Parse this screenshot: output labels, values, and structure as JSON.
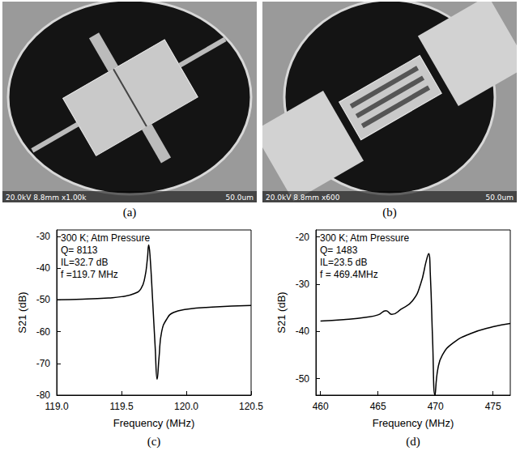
{
  "panels": [
    {
      "label": "(a)",
      "image": {
        "caption": "20.0kV 8.8mm x1.00k",
        "scale_bar": "50.0um"
      }
    },
    {
      "label": "(b)",
      "image": {
        "caption": "20.0kV 8.8mm x600",
        "scale_bar": "50.0um"
      }
    }
  ],
  "chart_data": [
    {
      "type": "line",
      "panel_label": "(c)",
      "x_label": "Frequency (MHz)",
      "y_label": "S21 (dB)",
      "annotations": [
        "300 K; Atm Pressure",
        "Q= 8113",
        "IL=32.7 dB",
        "f =119.7 MHz"
      ],
      "x": [
        119.0,
        119.2,
        119.4,
        119.5,
        119.6,
        119.65,
        119.68,
        119.7,
        119.71,
        119.72,
        119.74,
        119.76,
        119.775,
        119.79,
        119.81,
        119.85,
        119.9,
        120.0,
        120.2,
        120.5
      ],
      "values": [
        -50.0,
        -49.8,
        -49.4,
        -49.0,
        -48.0,
        -46.5,
        -43.0,
        -37.0,
        -32.7,
        -36.0,
        -50.0,
        -65.0,
        -75.0,
        -68.0,
        -60.0,
        -56.0,
        -54.0,
        -53.0,
        -52.3,
        -51.8
      ],
      "color": "#000000",
      "xlim": [
        119.0,
        120.5
      ],
      "ylim": [
        -80,
        -28
      ],
      "xticks": [
        {
          "value": 119.0,
          "label": "119.0"
        },
        {
          "value": 119.5,
          "label": "119.5"
        },
        {
          "value": 120.0,
          "label": "120.0"
        },
        {
          "value": 120.5,
          "label": "120.5"
        }
      ],
      "yticks": [
        -80,
        -70,
        -60,
        -50,
        -40,
        -30
      ],
      "grid": false
    },
    {
      "type": "line",
      "panel_label": "(d)",
      "x_label": "Frequency (MHz)",
      "y_label": "S21 (dB)",
      "annotations": [
        "300 K; Atm Pressure",
        "Q= 1483",
        "IL=23.5 dB",
        "f = 469.4MHz"
      ],
      "x": [
        460,
        462,
        464,
        465,
        465.7,
        466.2,
        467,
        468,
        468.7,
        469.2,
        469.4,
        469.55,
        469.75,
        469.95,
        470.2,
        470.6,
        471.5,
        473,
        475,
        476.5
      ],
      "values": [
        -37.8,
        -37.5,
        -37.0,
        -36.5,
        -35.6,
        -36.4,
        -35.3,
        -33.5,
        -30.0,
        -25.0,
        -23.5,
        -28.0,
        -42.0,
        -53.5,
        -48.0,
        -45.0,
        -42.5,
        -40.5,
        -39.0,
        -38.3
      ],
      "color": "#000000",
      "xlim": [
        459.6,
        476.5
      ],
      "ylim": [
        -53.5,
        -18.5
      ],
      "xticks": [
        460,
        465,
        470,
        475
      ],
      "yticks": [
        -50,
        -40,
        -30,
        -20
      ],
      "grid": false
    }
  ]
}
